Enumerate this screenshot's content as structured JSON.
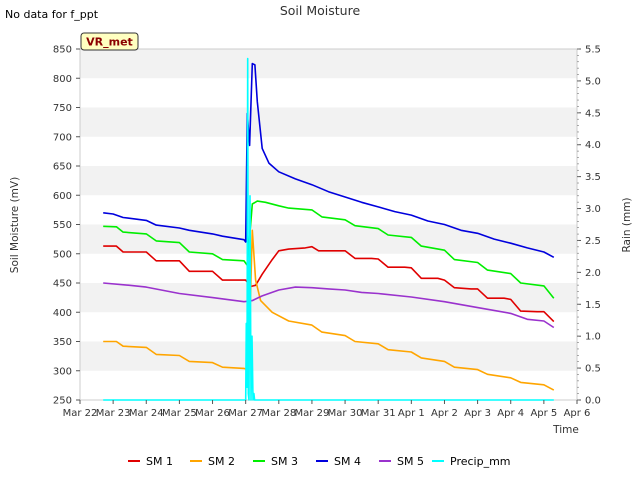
{
  "note": "No data for f_ppt",
  "station_badge": "VR_met",
  "chart_data": {
    "type": "line",
    "title": "Soil Moisture",
    "xlabel": "Time",
    "ylabel": "Soil Moisture (mV)",
    "y2label": "Rain (mm)",
    "ylim": [
      250,
      850
    ],
    "y2lim": [
      0.0,
      5.5
    ],
    "yticks": [
      250,
      300,
      350,
      400,
      450,
      500,
      550,
      600,
      650,
      700,
      750,
      800,
      850
    ],
    "y2ticks": [
      "0.0",
      "0.5",
      "1.0",
      "1.5",
      "2.0",
      "2.5",
      "3.0",
      "3.5",
      "4.0",
      "4.5",
      "5.0",
      "5.5"
    ],
    "xlim": [
      0,
      15
    ],
    "xticks": [
      "Mar 22",
      "Mar 23",
      "Mar 24",
      "Mar 25",
      "Mar 26",
      "Mar 27",
      "Mar 28",
      "Mar 29",
      "Mar 30",
      "Mar 31",
      "Apr 1",
      "Apr 2",
      "Apr 3",
      "Apr 4",
      "Apr 5",
      "Apr 6"
    ],
    "grid": "horizontal bands",
    "legend_position": "bottom-center",
    "series": [
      {
        "name": "SM 1",
        "color": "#e00000",
        "axis": "left",
        "x": [
          0.7,
          1.1,
          1.3,
          2.0,
          2.3,
          3.0,
          3.3,
          4.0,
          4.3,
          5.0,
          5.15,
          5.3,
          5.5,
          5.8,
          6.0,
          6.3,
          6.8,
          7.0,
          7.2,
          7.5,
          7.8,
          8.0,
          8.3,
          8.8,
          9.0,
          9.3,
          9.8,
          10.0,
          10.3,
          10.8,
          11.0,
          11.3,
          11.8,
          12.0,
          12.3,
          12.8,
          13.0,
          13.3,
          13.8,
          14.0,
          14.3
        ],
        "values": [
          513,
          513,
          503,
          503,
          488,
          488,
          470,
          470,
          455,
          455,
          444,
          446,
          465,
          490,
          505,
          508,
          510,
          512,
          505,
          505,
          505,
          505,
          492,
          492,
          491,
          477,
          477,
          476,
          458,
          458,
          455,
          442,
          440,
          440,
          424,
          424,
          422,
          402,
          401,
          401,
          384
        ]
      },
      {
        "name": "SM 2",
        "color": "#ffa500",
        "axis": "left",
        "x": [
          0.7,
          1.1,
          1.3,
          2.0,
          2.3,
          3.0,
          3.3,
          4.0,
          4.3,
          4.95,
          5.05,
          5.1,
          5.2,
          5.3,
          5.45,
          5.8,
          6.3,
          7.0,
          7.3,
          8.0,
          8.3,
          9.0,
          9.3,
          10.0,
          10.3,
          11.0,
          11.3,
          12.0,
          12.3,
          13.0,
          13.3,
          14.0,
          14.3
        ],
        "values": [
          350,
          350,
          342,
          340,
          328,
          326,
          316,
          314,
          306,
          304,
          302,
          330,
          540,
          455,
          420,
          400,
          385,
          378,
          366,
          360,
          350,
          346,
          336,
          332,
          322,
          316,
          306,
          302,
          294,
          288,
          280,
          276,
          267
        ]
      },
      {
        "name": "SM 3",
        "color": "#00ee00",
        "axis": "left",
        "x": [
          0.7,
          1.1,
          1.3,
          2.0,
          2.3,
          3.0,
          3.3,
          4.0,
          4.3,
          4.95,
          5.05,
          5.2,
          5.35,
          5.6,
          6.0,
          6.3,
          7.0,
          7.3,
          8.0,
          8.3,
          9.0,
          9.3,
          10.0,
          10.3,
          11.0,
          11.3,
          12.0,
          12.3,
          13.0,
          13.3,
          14.0,
          14.3
        ],
        "values": [
          547,
          546,
          537,
          534,
          522,
          519,
          503,
          500,
          490,
          488,
          480,
          585,
          590,
          588,
          582,
          578,
          575,
          563,
          558,
          548,
          543,
          532,
          528,
          513,
          506,
          490,
          485,
          472,
          466,
          450,
          445,
          424
        ]
      },
      {
        "name": "SM 4",
        "color": "#0000dd",
        "axis": "left",
        "x": [
          0.7,
          1.0,
          1.3,
          2.0,
          2.3,
          3.0,
          3.3,
          4.0,
          4.3,
          4.95,
          5.0,
          5.05,
          5.12,
          5.2,
          5.28,
          5.35,
          5.5,
          5.7,
          6.0,
          6.5,
          7.0,
          7.5,
          8.0,
          8.5,
          9.0,
          9.5,
          10.0,
          10.5,
          11.0,
          11.5,
          12.0,
          12.5,
          13.0,
          13.5,
          14.0,
          14.3
        ],
        "values": [
          570,
          568,
          562,
          557,
          549,
          544,
          540,
          534,
          530,
          524,
          520,
          740,
          685,
          825,
          823,
          760,
          680,
          655,
          640,
          628,
          618,
          606,
          597,
          588,
          580,
          572,
          566,
          556,
          550,
          540,
          535,
          525,
          518,
          510,
          503,
          494
        ]
      },
      {
        "name": "SM 5",
        "color": "#9a32cd",
        "axis": "left",
        "x": [
          0.7,
          1.5,
          2.0,
          3.0,
          4.0,
          4.95,
          5.2,
          5.5,
          6.0,
          6.5,
          7.0,
          7.5,
          8.0,
          8.5,
          9.0,
          10.0,
          11.0,
          12.0,
          13.0,
          13.5,
          14.0,
          14.3
        ],
        "values": [
          450,
          446,
          443,
          432,
          425,
          418,
          420,
          428,
          438,
          443,
          442,
          440,
          438,
          434,
          432,
          426,
          418,
          408,
          398,
          388,
          385,
          374
        ]
      },
      {
        "name": "Precip_mm",
        "color": "#00ffff",
        "axis": "right",
        "x": [
          0.7,
          5.0,
          5.02,
          5.04,
          5.06,
          5.08,
          5.1,
          5.13,
          5.16,
          5.19,
          5.22,
          5.25,
          5.27,
          5.29,
          5.31,
          14.3
        ],
        "values": [
          0.0,
          0.0,
          1.2,
          0.2,
          5.35,
          0.1,
          0.0,
          3.2,
          0.0,
          1.0,
          0.0,
          0.1,
          0.0,
          0.0,
          0.0,
          0.0
        ]
      }
    ]
  }
}
